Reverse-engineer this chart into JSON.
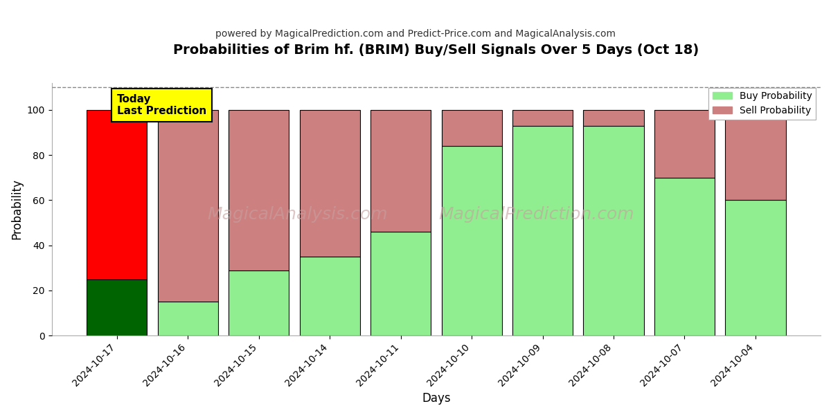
{
  "title": "Probabilities of Brim hf. (BRIM) Buy/Sell Signals Over 5 Days (Oct 18)",
  "subtitle": "powered by MagicalPrediction.com and Predict-Price.com and MagicalAnalysis.com",
  "xlabel": "Days",
  "ylabel": "Probability",
  "categories": [
    "2024-10-17",
    "2024-10-16",
    "2024-10-15",
    "2024-10-14",
    "2024-10-11",
    "2024-10-10",
    "2024-10-09",
    "2024-10-08",
    "2024-10-07",
    "2024-10-04"
  ],
  "buy_values": [
    25,
    15,
    29,
    35,
    46,
    84,
    93,
    93,
    70,
    60
  ],
  "sell_values": [
    75,
    85,
    71,
    65,
    54,
    16,
    7,
    7,
    30,
    40
  ],
  "buy_color_today": "#006400",
  "sell_color_today": "#ff0000",
  "buy_color_other": "#90ee90",
  "sell_color_other": "#cd8080",
  "today_label_bg": "#ffff00",
  "today_label_text": "Today\nLast Prediction",
  "ylim": [
    0,
    112
  ],
  "yticks": [
    0,
    20,
    40,
    60,
    80,
    100
  ],
  "dashed_line_y": 110,
  "legend_buy": "Buy Probability",
  "legend_sell": "Sell Probability",
  "bar_width": 0.85,
  "grid_color": "#aaaaaa",
  "background_color": "#ffffff"
}
